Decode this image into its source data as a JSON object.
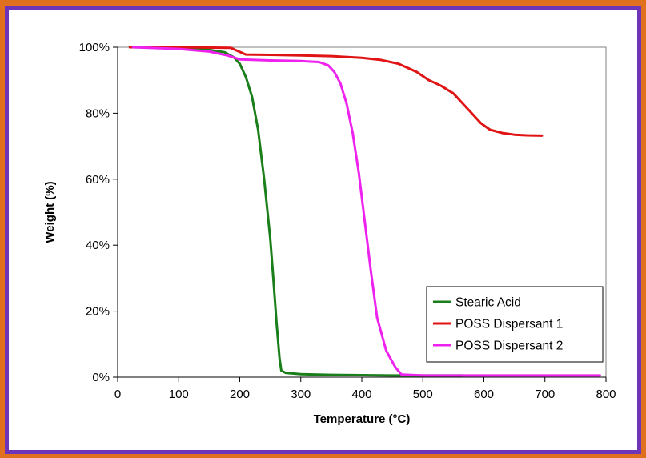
{
  "colors": {
    "outer_frame": "#e0701d",
    "panel_border": "#6f35b8",
    "plot_background": "#ffffff"
  },
  "chart_data": {
    "type": "line",
    "title": "",
    "xlabel": "Temperature (°C)",
    "ylabel": "Weight (%)",
    "xlim": [
      0,
      800
    ],
    "ylim": [
      0,
      100
    ],
    "x_ticks": [
      0,
      100,
      200,
      300,
      400,
      500,
      600,
      700,
      800
    ],
    "y_ticks": [
      0,
      20,
      40,
      60,
      80,
      100
    ],
    "x_tick_labels": [
      "0",
      "100",
      "200",
      "300",
      "400",
      "500",
      "600",
      "700",
      "800"
    ],
    "y_tick_labels": [
      "0%",
      "20%",
      "40%",
      "60%",
      "80%",
      "100%"
    ],
    "grid": false,
    "legend_position": "bottom-right",
    "series": [
      {
        "name": "Stearic Acid",
        "color": "#1a7f1a",
        "points": [
          [
            20,
            100
          ],
          [
            100,
            99.8
          ],
          [
            150,
            99.2
          ],
          [
            175,
            98.5
          ],
          [
            190,
            97
          ],
          [
            200,
            95
          ],
          [
            210,
            91
          ],
          [
            220,
            85
          ],
          [
            230,
            75
          ],
          [
            240,
            60
          ],
          [
            250,
            42
          ],
          [
            255,
            30
          ],
          [
            260,
            17
          ],
          [
            265,
            6
          ],
          [
            268,
            2
          ],
          [
            275,
            1.3
          ],
          [
            300,
            0.9
          ],
          [
            350,
            0.7
          ],
          [
            450,
            0.5
          ],
          [
            565,
            0.5
          ]
        ]
      },
      {
        "name": "POSS Dispersant 1",
        "color": "#e01414",
        "points": [
          [
            20,
            100
          ],
          [
            100,
            100
          ],
          [
            185,
            99.8
          ],
          [
            195,
            99
          ],
          [
            210,
            97.8
          ],
          [
            250,
            97.7
          ],
          [
            300,
            97.5
          ],
          [
            350,
            97.3
          ],
          [
            400,
            96.8
          ],
          [
            430,
            96.2
          ],
          [
            460,
            95
          ],
          [
            490,
            92.5
          ],
          [
            510,
            90
          ],
          [
            530,
            88.3
          ],
          [
            550,
            86
          ],
          [
            565,
            83
          ],
          [
            580,
            80
          ],
          [
            595,
            77
          ],
          [
            610,
            75
          ],
          [
            630,
            74
          ],
          [
            650,
            73.5
          ],
          [
            670,
            73.3
          ],
          [
            695,
            73.2
          ]
        ]
      },
      {
        "name": "POSS Dispersant 2",
        "color": "#ee22ee",
        "points": [
          [
            25,
            100
          ],
          [
            100,
            99.5
          ],
          [
            150,
            98.7
          ],
          [
            180,
            97.5
          ],
          [
            200,
            96.3
          ],
          [
            250,
            96
          ],
          [
            300,
            95.8
          ],
          [
            330,
            95.5
          ],
          [
            345,
            94.5
          ],
          [
            355,
            92.5
          ],
          [
            365,
            89
          ],
          [
            375,
            83
          ],
          [
            385,
            74
          ],
          [
            395,
            62
          ],
          [
            405,
            47
          ],
          [
            415,
            32
          ],
          [
            425,
            18
          ],
          [
            440,
            8
          ],
          [
            455,
            3
          ],
          [
            465,
            0.8
          ],
          [
            500,
            0.5
          ],
          [
            600,
            0.5
          ],
          [
            700,
            0.5
          ],
          [
            790,
            0.5
          ]
        ]
      }
    ]
  }
}
